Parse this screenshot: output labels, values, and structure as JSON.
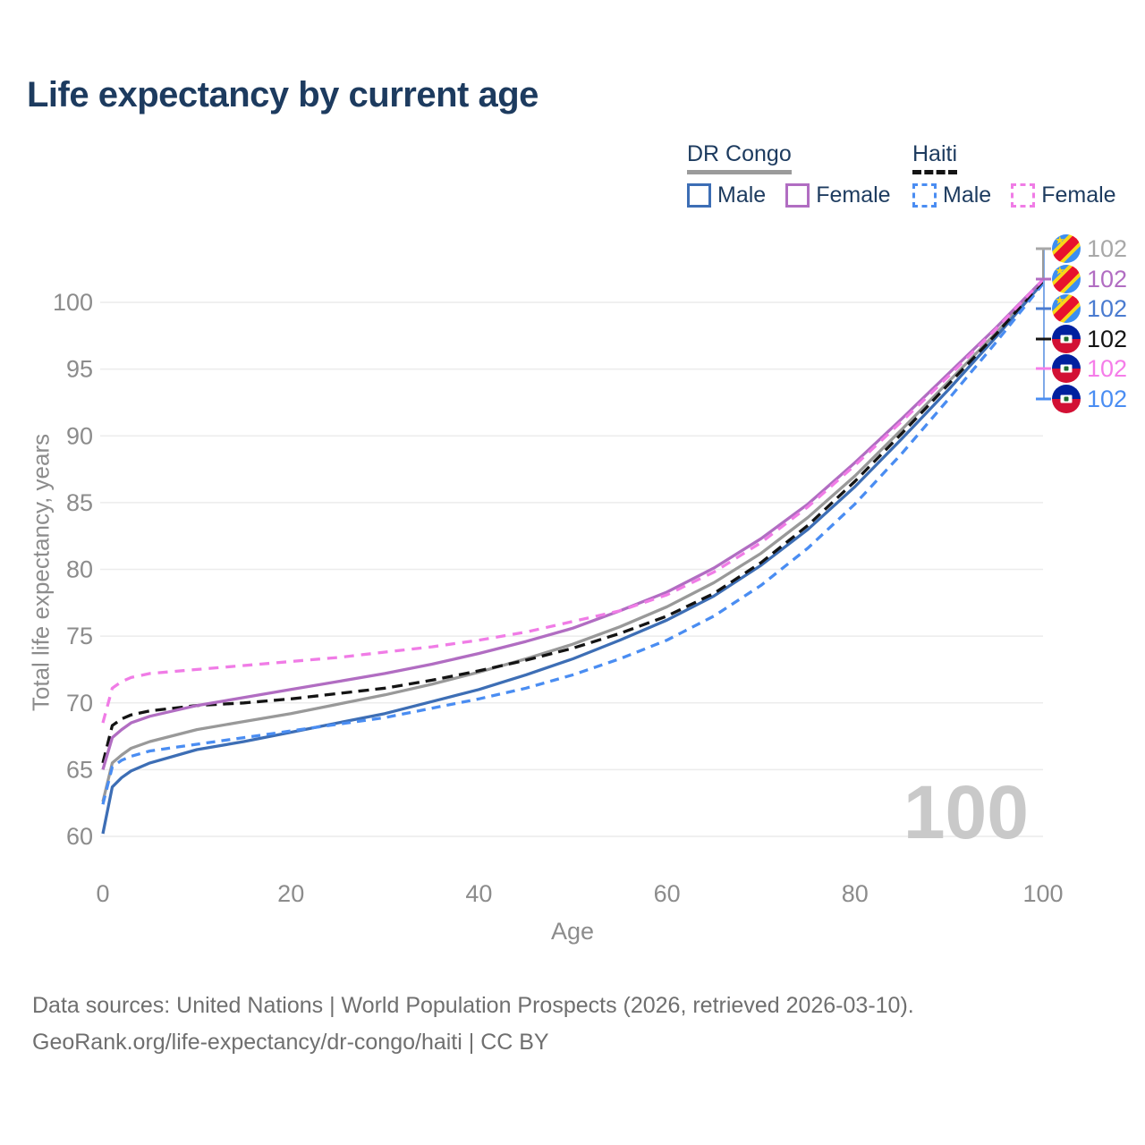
{
  "title": "Life expectancy by current age",
  "colors": {
    "title_text": "#1d3b5f",
    "axis_text": "#8c8c8c",
    "grid": "#ececec",
    "watermark": "#c9c9c9",
    "drc_male": "#3d6eb5",
    "drc_female": "#b16dc2",
    "drc_both": "#999999",
    "haiti_male": "#4a8df2",
    "haiti_female": "#f07ce6",
    "haiti_both": "#141414",
    "connector": "#7ea9e8"
  },
  "legend": {
    "groups": [
      {
        "label": "DR Congo",
        "line_style": "solid",
        "items": [
          {
            "label": "Male",
            "color": "#3d6eb5"
          },
          {
            "label": "Female",
            "color": "#b16dc2"
          }
        ]
      },
      {
        "label": "Haiti",
        "line_style": "dashed",
        "items": [
          {
            "label": "Male",
            "color": "#4a8df2"
          },
          {
            "label": "Female",
            "color": "#f07ce6"
          }
        ]
      }
    ]
  },
  "end_labels": [
    {
      "flag": "drc",
      "value": "102",
      "color": "#a8a8a8",
      "y": 278
    },
    {
      "flag": "drc",
      "value": "102",
      "color": "#b16dc2",
      "y": 312
    },
    {
      "flag": "drc",
      "value": "102",
      "color": "#4a7bd0",
      "y": 345
    },
    {
      "flag": "haiti",
      "value": "102",
      "color": "#141414",
      "y": 379
    },
    {
      "flag": "haiti",
      "value": "102",
      "color": "#f57de9",
      "y": 412
    },
    {
      "flag": "haiti",
      "value": "102",
      "color": "#4a8df2",
      "y": 446
    }
  ],
  "watermark": "100",
  "footer": {
    "line1": "Data sources: United Nations | World Population Prospects (2026, retrieved 2026-03-10).",
    "line2": "GeoRank.org/life-expectancy/dr-congo/haiti | CC BY"
  },
  "chart_data": {
    "type": "line",
    "title": "Life expectancy by current age",
    "xlabel": "Age",
    "ylabel": "Total life expectancy, years",
    "xlim": [
      0,
      100
    ],
    "ylim": [
      60,
      102
    ],
    "xticks": [
      0,
      20,
      40,
      60,
      80,
      100
    ],
    "yticks": [
      60,
      65,
      70,
      75,
      80,
      85,
      90,
      95,
      100
    ],
    "grid": "horizontal",
    "legend_position": "top-right",
    "series": [
      {
        "name": "DR Congo Both sexes",
        "country": "DR Congo",
        "sex": "both",
        "color": "#999999",
        "dash": null,
        "points": [
          [
            0,
            62.6
          ],
          [
            1,
            65.5
          ],
          [
            2,
            66.1
          ],
          [
            3,
            66.6
          ],
          [
            5,
            67.1
          ],
          [
            10,
            68.0
          ],
          [
            15,
            68.6
          ],
          [
            20,
            69.2
          ],
          [
            25,
            69.9
          ],
          [
            30,
            70.6
          ],
          [
            35,
            71.4
          ],
          [
            40,
            72.3
          ],
          [
            45,
            73.3
          ],
          [
            50,
            74.4
          ],
          [
            55,
            75.7
          ],
          [
            60,
            77.2
          ],
          [
            65,
            79.0
          ],
          [
            70,
            81.2
          ],
          [
            75,
            83.9
          ],
          [
            80,
            87.0
          ],
          [
            85,
            90.5
          ],
          [
            90,
            94.1
          ],
          [
            95,
            97.7
          ],
          [
            100,
            101.6
          ]
        ]
      },
      {
        "name": "DR Congo Male",
        "country": "DR Congo",
        "sex": "male",
        "color": "#3d6eb5",
        "dash": null,
        "points": [
          [
            0,
            60.2
          ],
          [
            1,
            63.7
          ],
          [
            2,
            64.4
          ],
          [
            3,
            64.9
          ],
          [
            5,
            65.5
          ],
          [
            10,
            66.5
          ],
          [
            15,
            67.1
          ],
          [
            20,
            67.8
          ],
          [
            25,
            68.5
          ],
          [
            30,
            69.2
          ],
          [
            35,
            70.1
          ],
          [
            40,
            71.0
          ],
          [
            45,
            72.1
          ],
          [
            50,
            73.3
          ],
          [
            55,
            74.7
          ],
          [
            60,
            76.2
          ],
          [
            65,
            78.0
          ],
          [
            70,
            80.3
          ],
          [
            75,
            83.0
          ],
          [
            80,
            86.2
          ],
          [
            85,
            89.8
          ],
          [
            90,
            93.5
          ],
          [
            95,
            97.4
          ],
          [
            100,
            101.5
          ]
        ]
      },
      {
        "name": "Haiti Male",
        "country": "Haiti",
        "sex": "male",
        "color": "#4a8df2",
        "dash": "10 7",
        "points": [
          [
            0,
            62.4
          ],
          [
            1,
            65.2
          ],
          [
            2,
            65.7
          ],
          [
            3,
            66.0
          ],
          [
            5,
            66.4
          ],
          [
            10,
            66.9
          ],
          [
            15,
            67.4
          ],
          [
            20,
            67.9
          ],
          [
            25,
            68.4
          ],
          [
            30,
            68.9
          ],
          [
            35,
            69.6
          ],
          [
            40,
            70.3
          ],
          [
            45,
            71.1
          ],
          [
            50,
            72.1
          ],
          [
            55,
            73.3
          ],
          [
            60,
            74.7
          ],
          [
            65,
            76.5
          ],
          [
            70,
            78.8
          ],
          [
            75,
            81.6
          ],
          [
            80,
            84.9
          ],
          [
            85,
            88.7
          ],
          [
            90,
            92.8
          ],
          [
            95,
            97.0
          ],
          [
            100,
            101.4
          ]
        ]
      },
      {
        "name": "Haiti Both sexes",
        "country": "Haiti",
        "sex": "both",
        "color": "#141414",
        "dash": "12 7",
        "points": [
          [
            0,
            65.5
          ],
          [
            1,
            68.3
          ],
          [
            2,
            68.8
          ],
          [
            3,
            69.1
          ],
          [
            5,
            69.4
          ],
          [
            10,
            69.8
          ],
          [
            15,
            70.0
          ],
          [
            20,
            70.3
          ],
          [
            25,
            70.7
          ],
          [
            30,
            71.1
          ],
          [
            35,
            71.7
          ],
          [
            40,
            72.4
          ],
          [
            45,
            73.2
          ],
          [
            50,
            74.1
          ],
          [
            55,
            75.2
          ],
          [
            60,
            76.5
          ],
          [
            65,
            78.2
          ],
          [
            70,
            80.5
          ],
          [
            75,
            83.3
          ],
          [
            80,
            86.6
          ],
          [
            85,
            90.2
          ],
          [
            90,
            93.9
          ],
          [
            95,
            97.6
          ],
          [
            100,
            101.6
          ]
        ]
      },
      {
        "name": "DR Congo Female",
        "country": "DR Congo",
        "sex": "female",
        "color": "#b16dc2",
        "dash": null,
        "points": [
          [
            0,
            65.0
          ],
          [
            1,
            67.4
          ],
          [
            2,
            68.0
          ],
          [
            3,
            68.5
          ],
          [
            5,
            69.0
          ],
          [
            10,
            69.8
          ],
          [
            15,
            70.4
          ],
          [
            20,
            71.0
          ],
          [
            25,
            71.6
          ],
          [
            30,
            72.2
          ],
          [
            35,
            72.9
          ],
          [
            40,
            73.7
          ],
          [
            45,
            74.6
          ],
          [
            50,
            75.6
          ],
          [
            55,
            76.9
          ],
          [
            60,
            78.3
          ],
          [
            65,
            80.1
          ],
          [
            70,
            82.3
          ],
          [
            75,
            84.9
          ],
          [
            80,
            88.0
          ],
          [
            85,
            91.3
          ],
          [
            90,
            94.7
          ],
          [
            95,
            98.1
          ],
          [
            100,
            101.7
          ]
        ]
      },
      {
        "name": "Haiti Female",
        "country": "Haiti",
        "sex": "female",
        "color": "#f07ce6",
        "dash": "11 8",
        "points": [
          [
            0,
            68.5
          ],
          [
            1,
            71.1
          ],
          [
            2,
            71.6
          ],
          [
            3,
            71.9
          ],
          [
            5,
            72.2
          ],
          [
            10,
            72.5
          ],
          [
            15,
            72.8
          ],
          [
            20,
            73.1
          ],
          [
            25,
            73.4
          ],
          [
            30,
            73.8
          ],
          [
            35,
            74.2
          ],
          [
            40,
            74.7
          ],
          [
            45,
            75.3
          ],
          [
            50,
            76.1
          ],
          [
            55,
            76.9
          ],
          [
            60,
            78.1
          ],
          [
            65,
            79.8
          ],
          [
            70,
            82.0
          ],
          [
            75,
            84.7
          ],
          [
            80,
            87.8
          ],
          [
            85,
            91.1
          ],
          [
            90,
            94.5
          ],
          [
            95,
            98.0
          ],
          [
            100,
            101.7
          ]
        ]
      }
    ]
  }
}
